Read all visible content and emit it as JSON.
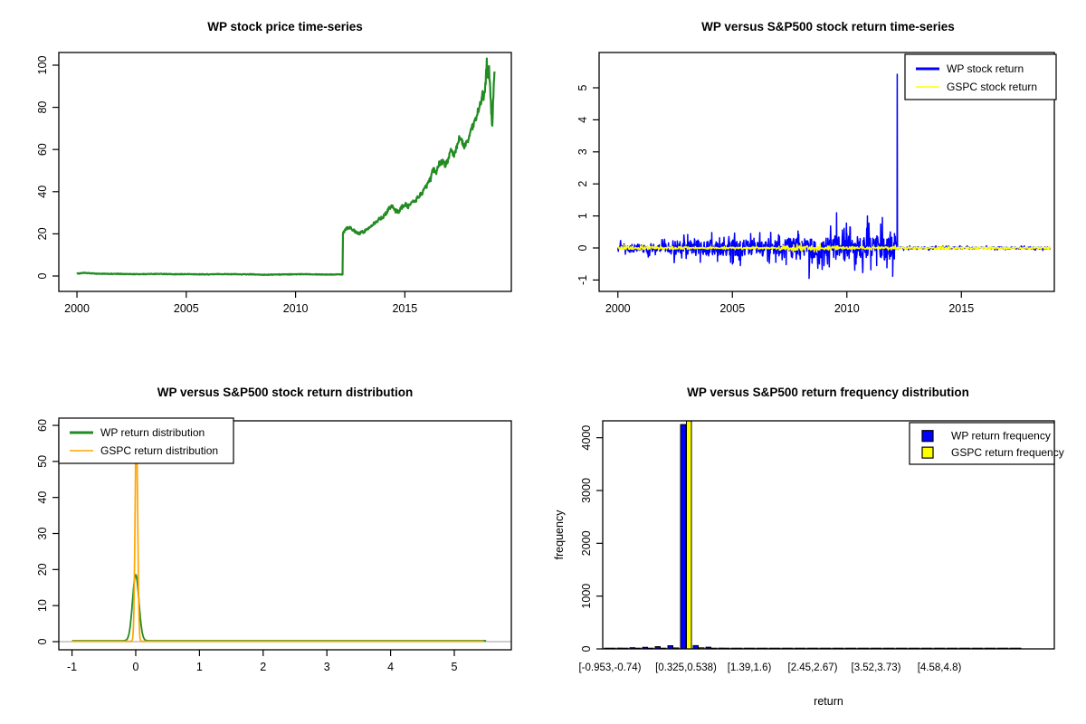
{
  "page": {
    "background": "#ffffff"
  },
  "chart_data": [
    {
      "type": "line",
      "title": "WP stock price time-series",
      "x_ticks": [
        2000,
        2005,
        2010,
        2015
      ],
      "y_ticks": [
        0,
        20,
        40,
        60,
        80,
        100
      ],
      "xlim": [
        1999.2,
        2019.9
      ],
      "ylim": [
        0,
        101
      ],
      "series": [
        {
          "name": "WP stock price",
          "color": "#228B22",
          "line_width": 2.2,
          "points": [
            [
              2000.0,
              1.1
            ],
            [
              2000.3,
              1.5
            ],
            [
              2000.6,
              1.3
            ],
            [
              2001.0,
              1.1
            ],
            [
              2001.5,
              1.0
            ],
            [
              2002.0,
              1.0
            ],
            [
              2002.5,
              0.9
            ],
            [
              2003.0,
              0.9
            ],
            [
              2003.5,
              1.0
            ],
            [
              2004.0,
              1.0
            ],
            [
              2004.5,
              0.8
            ],
            [
              2005.0,
              0.9
            ],
            [
              2005.5,
              0.8
            ],
            [
              2006.0,
              0.8
            ],
            [
              2006.5,
              0.9
            ],
            [
              2007.0,
              0.9
            ],
            [
              2007.5,
              0.8
            ],
            [
              2008.0,
              0.8
            ],
            [
              2008.5,
              0.6
            ],
            [
              2009.0,
              0.7
            ],
            [
              2009.5,
              0.8
            ],
            [
              2010.0,
              0.8
            ],
            [
              2010.5,
              0.9
            ],
            [
              2011.0,
              0.8
            ],
            [
              2011.5,
              0.7
            ],
            [
              2012.0,
              0.8
            ],
            [
              2012.15,
              0.8
            ],
            [
              2012.17,
              20.5
            ],
            [
              2012.3,
              22.5
            ],
            [
              2012.45,
              23.2
            ],
            [
              2012.6,
              22.3
            ],
            [
              2012.75,
              20.6
            ],
            [
              2012.9,
              20.2
            ],
            [
              2013.1,
              21.0
            ],
            [
              2013.3,
              22.2
            ],
            [
              2013.5,
              24.5
            ],
            [
              2013.7,
              26.0
            ],
            [
              2013.9,
              27.5
            ],
            [
              2014.1,
              29.0
            ],
            [
              2014.25,
              32.0
            ],
            [
              2014.4,
              33.5
            ],
            [
              2014.55,
              31.0
            ],
            [
              2014.7,
              30.5
            ],
            [
              2014.85,
              32.5
            ],
            [
              2015.0,
              34.0
            ],
            [
              2015.15,
              33.0
            ],
            [
              2015.3,
              34.5
            ],
            [
              2015.5,
              36.0
            ],
            [
              2015.7,
              38.5
            ],
            [
              2015.9,
              41.0
            ],
            [
              2016.05,
              44.0
            ],
            [
              2016.2,
              46.5
            ],
            [
              2016.3,
              51.0
            ],
            [
              2016.4,
              48.5
            ],
            [
              2016.55,
              53.0
            ],
            [
              2016.7,
              54.5
            ],
            [
              2016.85,
              52.5
            ],
            [
              2017.0,
              56.0
            ],
            [
              2017.1,
              59.0
            ],
            [
              2017.25,
              57.0
            ],
            [
              2017.4,
              62.0
            ],
            [
              2017.5,
              66.0
            ],
            [
              2017.6,
              64.0
            ],
            [
              2017.7,
              61.0
            ],
            [
              2017.85,
              64.0
            ],
            [
              2018.0,
              68.0
            ],
            [
              2018.1,
              71.0
            ],
            [
              2018.2,
              73.0
            ],
            [
              2018.3,
              76.0
            ],
            [
              2018.4,
              81.0
            ],
            [
              2018.5,
              83.5
            ],
            [
              2018.55,
              86.0
            ],
            [
              2018.6,
              82.0
            ],
            [
              2018.7,
              93.0
            ],
            [
              2018.75,
              101.0
            ],
            [
              2018.8,
              95.0
            ],
            [
              2018.85,
              98.0
            ],
            [
              2018.9,
              88.0
            ],
            [
              2018.95,
              78.0
            ],
            [
              2019.0,
              71.0
            ],
            [
              2019.05,
              86.0
            ],
            [
              2019.1,
              97.0
            ]
          ]
        }
      ]
    },
    {
      "type": "return-line",
      "title": "WP versus S&P500 stock return time-series",
      "x_ticks": [
        2000,
        2005,
        2010,
        2015
      ],
      "y_ticks": [
        -1,
        0,
        1,
        2,
        3,
        4,
        5
      ],
      "xlim": [
        1999.2,
        2019.1
      ],
      "ylim": [
        -1,
        5.42
      ],
      "legend": {
        "items": [
          {
            "label": "WP stock return",
            "color": "#0000FF",
            "lw": 3
          },
          {
            "label": "GSPC stock return",
            "color": "#FFFF00",
            "lw": 1.5
          }
        ]
      },
      "series": [
        {
          "name": "WP stock return",
          "color": "#0000FF",
          "line_width": 1.5,
          "noise_segments": [
            [
              2000,
              2002.3,
              0.13
            ],
            [
              2002.3,
              2004.8,
              0.25
            ],
            [
              2004.8,
              2007.2,
              0.25
            ],
            [
              2007.2,
              2009.4,
              0.32
            ],
            [
              2009.4,
              2012.2,
              0.38
            ],
            [
              2012.2,
              2018.9,
              0.035
            ]
          ],
          "spikes": [
            [
              2003.05,
              0.42
            ],
            [
              2003.6,
              -0.45
            ],
            [
              2004.1,
              0.48
            ],
            [
              2004.35,
              -0.42
            ],
            [
              2005.0,
              -0.5
            ],
            [
              2005.35,
              -0.55
            ],
            [
              2005.8,
              0.45
            ],
            [
              2006.2,
              0.48
            ],
            [
              2006.9,
              -0.45
            ],
            [
              2007.35,
              -0.52
            ],
            [
              2007.9,
              0.42
            ],
            [
              2008.35,
              -0.95
            ],
            [
              2008.8,
              -0.5
            ],
            [
              2009.0,
              -0.55
            ],
            [
              2009.55,
              1.1
            ],
            [
              2010.0,
              0.45
            ],
            [
              2010.15,
              0.62
            ],
            [
              2010.4,
              -0.5
            ],
            [
              2010.7,
              -0.62
            ],
            [
              2010.9,
              1.0
            ],
            [
              2011.05,
              -0.68
            ],
            [
              2011.3,
              -0.55
            ],
            [
              2011.55,
              0.95
            ],
            [
              2011.75,
              -0.62
            ],
            [
              2011.9,
              0.5
            ],
            [
              2012.0,
              -0.88
            ],
            [
              2012.08,
              0.45
            ],
            [
              2012.2,
              5.42
            ]
          ]
        },
        {
          "name": "GSPC stock return",
          "color": "#FFFF00",
          "line_width": 1.5,
          "noise_segments": [
            [
              2000,
              2003.2,
              0.045
            ],
            [
              2003.2,
              2007,
              0.025
            ],
            [
              2007,
              2009.6,
              0.07
            ],
            [
              2009.6,
              2012.2,
              0.04
            ],
            [
              2012.2,
              2018.9,
              0.022
            ]
          ],
          "spikes": []
        }
      ]
    },
    {
      "type": "density",
      "title": "WP versus S&P500 stock return distribution",
      "x_ticks": [
        -1,
        0,
        1,
        2,
        3,
        4,
        5
      ],
      "y_ticks": [
        0,
        10,
        20,
        30,
        40,
        50,
        60
      ],
      "x_range": [
        -1,
        5.5
      ],
      "zero_line_color": "#BEBEBE",
      "legend": {
        "items": [
          {
            "label": "WP return distribution",
            "color": "#228B22",
            "lw": 3
          },
          {
            "label": "GSPC return distribution",
            "color": "#FFA500",
            "lw": 1.5
          }
        ]
      },
      "series": [
        {
          "name": "WP return distribution",
          "color": "#228B22",
          "line_width": 1.8,
          "peak": 18.3,
          "center": 0,
          "sd": 0.05,
          "base": 0.25
        },
        {
          "name": "GSPC return distribution",
          "color": "#FFA500",
          "line_width": 1.7,
          "peak": 60,
          "center": 0.01,
          "sd": 0.02,
          "base": 0.1
        }
      ]
    },
    {
      "type": "paired-bar",
      "title": "WP versus S&P500 return frequency distribution",
      "xlabel": "return",
      "ylabel": "frequency",
      "y_ticks": [
        0,
        1000,
        2000,
        3000,
        4000
      ],
      "bin_labels": [
        "[-0.953,-0.74)",
        "[0.325,0.538)",
        "[1.39,1.6)",
        "[2.45,2.67)",
        "[3.52,3.73)",
        "[4.58,4.8)"
      ],
      "label_bins": [
        0,
        6,
        11,
        16,
        21,
        26
      ],
      "n_bins": 33,
      "ymax": 4320,
      "legend": {
        "items": [
          {
            "label": "WP return frequency",
            "color": "#0000FF"
          },
          {
            "label": "GSPC return frequency",
            "color": "#FFFF00"
          }
        ]
      },
      "series": [
        {
          "name": "WP return frequency",
          "color": "#0000FF",
          "values": [
            8,
            15,
            22,
            30,
            42,
            60,
            4250,
            62,
            32,
            15,
            8,
            5,
            4,
            3,
            3,
            3,
            2,
            2,
            2,
            2,
            2,
            2,
            2,
            2,
            2,
            2,
            2,
            2,
            2,
            2,
            2,
            2,
            2
          ]
        },
        {
          "name": "GSPC return frequency",
          "color": "#FFFF00",
          "values": [
            2,
            3,
            4,
            6,
            10,
            18,
            4318,
            20,
            8,
            4,
            3,
            2,
            2,
            2,
            1,
            1,
            1,
            1,
            1,
            1,
            1,
            1,
            1,
            1,
            1,
            1,
            1,
            1,
            1,
            1,
            1,
            1,
            1
          ]
        }
      ]
    }
  ]
}
